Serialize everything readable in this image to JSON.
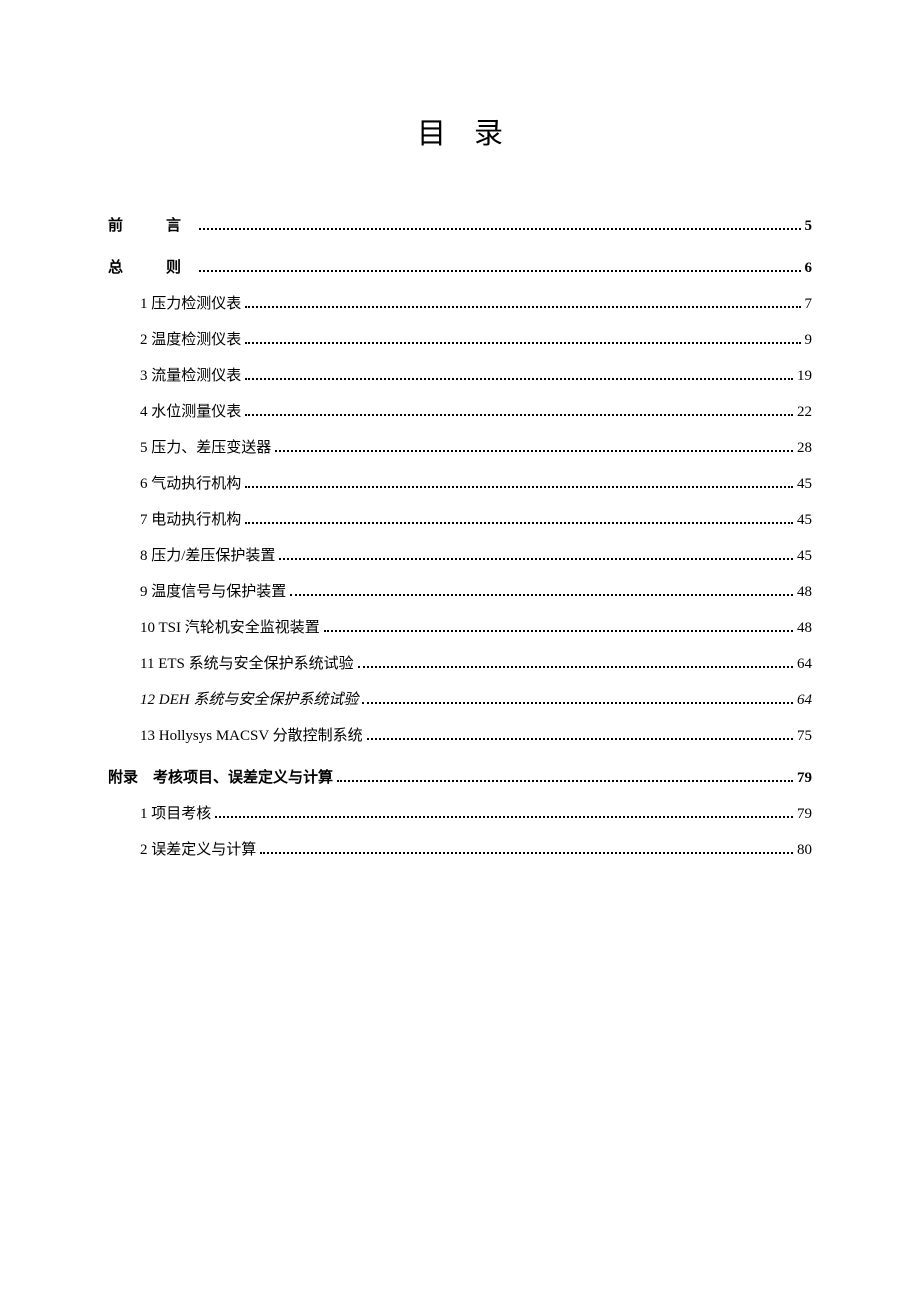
{
  "title": "目录",
  "background_color": "#ffffff",
  "text_color": "#000000",
  "title_fontsize": 29,
  "body_fontsize": 15,
  "entries": [
    {
      "label": "前　言",
      "page": "5",
      "level": 0,
      "bold": true,
      "spaced": true,
      "italic": false
    },
    {
      "label": "总　则",
      "page": "6",
      "level": 0,
      "bold": true,
      "spaced": true,
      "italic": false,
      "gap": true
    },
    {
      "label": "1 压力检测仪表",
      "page": "7",
      "level": 1,
      "bold": false,
      "spaced": false,
      "italic": false
    },
    {
      "label": "2 温度检测仪表",
      "page": "9",
      "level": 1,
      "bold": false,
      "spaced": false,
      "italic": false
    },
    {
      "label": "3 流量检测仪表",
      "page": "19",
      "level": 1,
      "bold": false,
      "spaced": false,
      "italic": false
    },
    {
      "label": "4 水位测量仪表",
      "page": "22",
      "level": 1,
      "bold": false,
      "spaced": false,
      "italic": false
    },
    {
      "label": "5 压力、差压变送器",
      "page": "28",
      "level": 1,
      "bold": false,
      "spaced": false,
      "italic": false
    },
    {
      "label": "6 气动执行机构",
      "page": "45",
      "level": 1,
      "bold": false,
      "spaced": false,
      "italic": false
    },
    {
      "label": "7 电动执行机构",
      "page": "45",
      "level": 1,
      "bold": false,
      "spaced": false,
      "italic": false
    },
    {
      "label": "8 压力/差压保护装置",
      "page": "45",
      "level": 1,
      "bold": false,
      "spaced": false,
      "italic": false
    },
    {
      "label": "9 温度信号与保护装置",
      "page": "48",
      "level": 1,
      "bold": false,
      "spaced": false,
      "italic": false
    },
    {
      "label": "10 TSI 汽轮机安全监视装置",
      "page": "48",
      "level": 1,
      "bold": false,
      "spaced": false,
      "italic": false
    },
    {
      "label": "11 ETS 系统与安全保护系统试验",
      "page": "64",
      "level": 1,
      "bold": false,
      "spaced": false,
      "italic": false
    },
    {
      "label": "12 DEH 系统与安全保护系统试验",
      "page": "64",
      "level": 1,
      "bold": false,
      "spaced": false,
      "italic": true
    },
    {
      "label": "13 Hollysys MACSV 分散控制系统",
      "page": "75",
      "level": 1,
      "bold": false,
      "spaced": false,
      "italic": false
    },
    {
      "label": "附录　考核项目、误差定义与计算",
      "page": "79",
      "level": 0,
      "bold": true,
      "spaced": false,
      "italic": false,
      "gap": true
    },
    {
      "label": "1 项目考核",
      "page": "79",
      "level": 1,
      "bold": false,
      "spaced": false,
      "italic": false
    },
    {
      "label": "2 误差定义与计算",
      "page": "80",
      "level": 1,
      "bold": false,
      "spaced": false,
      "italic": false
    }
  ]
}
